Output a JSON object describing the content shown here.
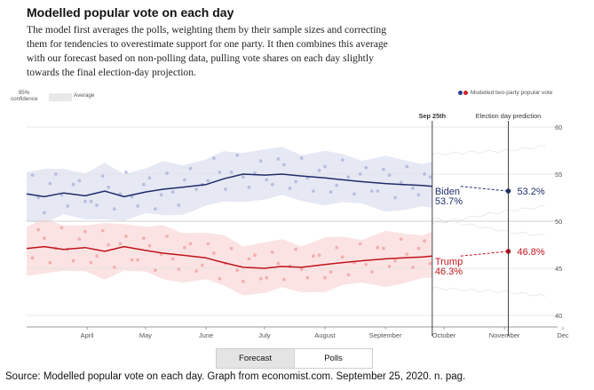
{
  "title": "Modelled popular vote on each day",
  "subtitle": "The model first averages the polls, weighting them by their sample sizes and correcting them for tendencies to overestimate support for one party. It then combines this average with our forecast based on non-polling data, pulling vote shares on each day slightly towards the final election-day projection.",
  "legend": {
    "confidence_label": "95% confidence",
    "average_label": "Average",
    "projection_label": "Modelled two-party popular vote"
  },
  "toggle": {
    "forecast_label": "Forecast",
    "polls_label": "Polls",
    "selected": "Forecast"
  },
  "source": "Source: Modelled popular vote on each day. Graph from economist.com. September 25, 2020. n. pag.",
  "colors": {
    "biden": "#1f2d6b",
    "biden_band": "#e6e8f4",
    "biden_dots": "#a9b2d9",
    "trump": "#c0141c",
    "trump_band": "#fbe3e3",
    "trump_dots": "#f0a0a0"
  },
  "chart_data": {
    "type": "line",
    "x_range": [
      "2020-03-01",
      "2020-12-01"
    ],
    "ylim": [
      40,
      60
    ],
    "y_ticks": [
      40,
      45,
      50,
      55,
      60
    ],
    "x_ticks": [
      {
        "date": "2020-04-01",
        "label": "April"
      },
      {
        "date": "2020-05-01",
        "label": "May"
      },
      {
        "date": "2020-06-01",
        "label": "June"
      },
      {
        "date": "2020-07-01",
        "label": "July"
      },
      {
        "date": "2020-08-01",
        "label": "August"
      },
      {
        "date": "2020-09-01",
        "label": "September"
      },
      {
        "date": "2020-10-01",
        "label": "October"
      },
      {
        "date": "2020-11-01",
        "label": "November"
      },
      {
        "date": "2020-12-01",
        "label": "Dec"
      }
    ],
    "markers": [
      {
        "date": "2020-09-25",
        "label": "Sep 25th"
      },
      {
        "date": "2020-11-03",
        "label": "Election day prediction"
      }
    ],
    "series": [
      {
        "name": "Biden",
        "current_label": "53.7%",
        "projection_label": "53.2%",
        "projection_value": 53.2,
        "band_halfwidth": 2.6,
        "average": [
          [
            "2020-03-01",
            52.9
          ],
          [
            "2020-03-10",
            52.6
          ],
          [
            "2020-03-20",
            53.0
          ],
          [
            "2020-03-31",
            52.7
          ],
          [
            "2020-04-10",
            53.2
          ],
          [
            "2020-04-20",
            52.6
          ],
          [
            "2020-05-01",
            53.1
          ],
          [
            "2020-05-10",
            53.4
          ],
          [
            "2020-05-20",
            53.6
          ],
          [
            "2020-06-01",
            53.9
          ],
          [
            "2020-06-10",
            54.5
          ],
          [
            "2020-06-20",
            55.0
          ],
          [
            "2020-07-01",
            54.9
          ],
          [
            "2020-07-10",
            55.0
          ],
          [
            "2020-07-20",
            54.8
          ],
          [
            "2020-08-01",
            54.6
          ],
          [
            "2020-08-10",
            54.4
          ],
          [
            "2020-08-20",
            54.2
          ],
          [
            "2020-09-01",
            54.0
          ],
          [
            "2020-09-10",
            53.9
          ],
          [
            "2020-09-20",
            53.8
          ],
          [
            "2020-09-25",
            53.7
          ]
        ],
        "poll_samples": [
          [
            "2020-03-04",
            54.9
          ],
          [
            "2020-03-07",
            52.5
          ],
          [
            "2020-03-10",
            50.9
          ],
          [
            "2020-03-13",
            54.0
          ],
          [
            "2020-03-16",
            55.0
          ],
          [
            "2020-03-19",
            52.8
          ],
          [
            "2020-03-22",
            51.6
          ],
          [
            "2020-03-25",
            53.9
          ],
          [
            "2020-03-28",
            54.3
          ],
          [
            "2020-03-31",
            52.1
          ],
          [
            "2020-04-03",
            52.1
          ],
          [
            "2020-04-06",
            51.7
          ],
          [
            "2020-04-09",
            54.8
          ],
          [
            "2020-04-12",
            53.6
          ],
          [
            "2020-04-15",
            51.3
          ],
          [
            "2020-04-18",
            52.9
          ],
          [
            "2020-04-21",
            55.2
          ],
          [
            "2020-04-24",
            52.6
          ],
          [
            "2020-04-27",
            51.6
          ],
          [
            "2020-04-30",
            53.9
          ],
          [
            "2020-05-03",
            54.6
          ],
          [
            "2020-05-06",
            51.3
          ],
          [
            "2020-05-09",
            52.8
          ],
          [
            "2020-05-12",
            55.1
          ],
          [
            "2020-05-15",
            53.1
          ],
          [
            "2020-05-18",
            51.7
          ],
          [
            "2020-05-21",
            54.4
          ],
          [
            "2020-05-24",
            55.6
          ],
          [
            "2020-05-27",
            53.4
          ],
          [
            "2020-05-30",
            53.9
          ],
          [
            "2020-06-02",
            54.3
          ],
          [
            "2020-06-05",
            56.7
          ],
          [
            "2020-06-08",
            55.2
          ],
          [
            "2020-06-11",
            53.4
          ],
          [
            "2020-06-14",
            55.2
          ],
          [
            "2020-06-17",
            57.0
          ],
          [
            "2020-06-20",
            54.7
          ],
          [
            "2020-06-23",
            53.6
          ],
          [
            "2020-06-26",
            55.1
          ],
          [
            "2020-06-29",
            56.4
          ],
          [
            "2020-07-02",
            54.4
          ],
          [
            "2020-07-05",
            53.9
          ],
          [
            "2020-07-08",
            56.6
          ],
          [
            "2020-07-11",
            56.0
          ],
          [
            "2020-07-14",
            53.5
          ],
          [
            "2020-07-17",
            54.2
          ],
          [
            "2020-07-20",
            56.7
          ],
          [
            "2020-07-23",
            54.6
          ],
          [
            "2020-07-26",
            53.2
          ],
          [
            "2020-07-29",
            55.4
          ],
          [
            "2020-08-01",
            55.8
          ],
          [
            "2020-08-04",
            53.1
          ],
          [
            "2020-08-07",
            53.8
          ],
          [
            "2020-08-10",
            56.5
          ],
          [
            "2020-08-13",
            54.7
          ],
          [
            "2020-08-16",
            52.9
          ],
          [
            "2020-08-19",
            55.0
          ],
          [
            "2020-08-22",
            55.7
          ],
          [
            "2020-08-25",
            53.2
          ],
          [
            "2020-08-28",
            53.2
          ],
          [
            "2020-08-31",
            55.5
          ],
          [
            "2020-09-03",
            54.9
          ],
          [
            "2020-09-06",
            52.5
          ],
          [
            "2020-09-09",
            54.1
          ],
          [
            "2020-09-12",
            55.8
          ],
          [
            "2020-09-15",
            53.5
          ],
          [
            "2020-09-18",
            52.8
          ],
          [
            "2020-09-21",
            55.0
          ],
          [
            "2020-09-24",
            54.7
          ]
        ]
      },
      {
        "name": "Trump",
        "current_label": "46.3%",
        "projection_label": "46.8%",
        "projection_value": 46.8,
        "band_halfwidth": 2.6,
        "average": [
          [
            "2020-03-01",
            47.1
          ],
          [
            "2020-03-10",
            47.3
          ],
          [
            "2020-03-20",
            47.0
          ],
          [
            "2020-03-31",
            47.2
          ],
          [
            "2020-04-10",
            46.8
          ],
          [
            "2020-04-20",
            47.3
          ],
          [
            "2020-05-01",
            46.9
          ],
          [
            "2020-05-10",
            46.6
          ],
          [
            "2020-05-20",
            46.4
          ],
          [
            "2020-06-01",
            46.1
          ],
          [
            "2020-06-10",
            45.6
          ],
          [
            "2020-06-20",
            45.1
          ],
          [
            "2020-07-01",
            45.0
          ],
          [
            "2020-07-10",
            45.2
          ],
          [
            "2020-07-20",
            45.1
          ],
          [
            "2020-08-01",
            45.4
          ],
          [
            "2020-08-10",
            45.6
          ],
          [
            "2020-08-20",
            45.8
          ],
          [
            "2020-09-01",
            46.0
          ],
          [
            "2020-09-10",
            46.1
          ],
          [
            "2020-09-20",
            46.2
          ],
          [
            "2020-09-25",
            46.3
          ]
        ],
        "poll_samples": [
          [
            "2020-03-04",
            46.1
          ],
          [
            "2020-03-07",
            49.1
          ],
          [
            "2020-03-10",
            48.2
          ],
          [
            "2020-03-13",
            45.6
          ],
          [
            "2020-03-16",
            47.1
          ],
          [
            "2020-03-19",
            49.3
          ],
          [
            "2020-03-22",
            47.0
          ],
          [
            "2020-03-25",
            45.8
          ],
          [
            "2020-03-28",
            48.1
          ],
          [
            "2020-03-31",
            48.9
          ],
          [
            "2020-04-03",
            45.6
          ],
          [
            "2020-04-06",
            46.3
          ],
          [
            "2020-04-09",
            49.0
          ],
          [
            "2020-04-12",
            47.5
          ],
          [
            "2020-04-15",
            45.1
          ],
          [
            "2020-04-18",
            47.6
          ],
          [
            "2020-04-21",
            48.4
          ],
          [
            "2020-04-24",
            45.9
          ],
          [
            "2020-04-27",
            45.9
          ],
          [
            "2020-04-30",
            48.2
          ],
          [
            "2020-05-03",
            47.4
          ],
          [
            "2020-05-06",
            44.8
          ],
          [
            "2020-05-09",
            46.5
          ],
          [
            "2020-05-12",
            48.4
          ],
          [
            "2020-05-15",
            46.0
          ],
          [
            "2020-05-18",
            44.9
          ],
          [
            "2020-05-21",
            47.2
          ],
          [
            "2020-05-24",
            47.6
          ],
          [
            "2020-05-27",
            44.7
          ],
          [
            "2020-05-30",
            45.3
          ],
          [
            "2020-06-02",
            47.6
          ],
          [
            "2020-06-05",
            46.6
          ],
          [
            "2020-06-08",
            43.9
          ],
          [
            "2020-06-11",
            45.5
          ],
          [
            "2020-06-14",
            47.1
          ],
          [
            "2020-06-17",
            44.8
          ],
          [
            "2020-06-20",
            43.6
          ],
          [
            "2020-06-23",
            46.0
          ],
          [
            "2020-06-26",
            46.4
          ],
          [
            "2020-06-29",
            43.9
          ],
          [
            "2020-07-02",
            44.0
          ],
          [
            "2020-07-05",
            46.7
          ],
          [
            "2020-07-08",
            45.5
          ],
          [
            "2020-07-11",
            43.8
          ],
          [
            "2020-07-14",
            45.2
          ],
          [
            "2020-07-17",
            47.0
          ],
          [
            "2020-07-20",
            44.9
          ],
          [
            "2020-07-23",
            44.0
          ],
          [
            "2020-07-26",
            46.3
          ],
          [
            "2020-07-29",
            46.4
          ],
          [
            "2020-08-01",
            44.0
          ],
          [
            "2020-08-04",
            44.6
          ],
          [
            "2020-08-07",
            47.2
          ],
          [
            "2020-08-10",
            46.2
          ],
          [
            "2020-08-13",
            44.3
          ],
          [
            "2020-08-16",
            45.6
          ],
          [
            "2020-08-19",
            47.6
          ],
          [
            "2020-08-22",
            45.4
          ],
          [
            "2020-08-25",
            44.6
          ],
          [
            "2020-08-28",
            47.2
          ],
          [
            "2020-08-31",
            47.1
          ],
          [
            "2020-09-03",
            45.2
          ],
          [
            "2020-09-06",
            45.8
          ],
          [
            "2020-09-09",
            48.1
          ],
          [
            "2020-09-12",
            46.5
          ],
          [
            "2020-09-15",
            45.1
          ],
          [
            "2020-09-18",
            47.1
          ],
          [
            "2020-09-21",
            47.9
          ],
          [
            "2020-09-24",
            45.5
          ]
        ]
      }
    ]
  }
}
